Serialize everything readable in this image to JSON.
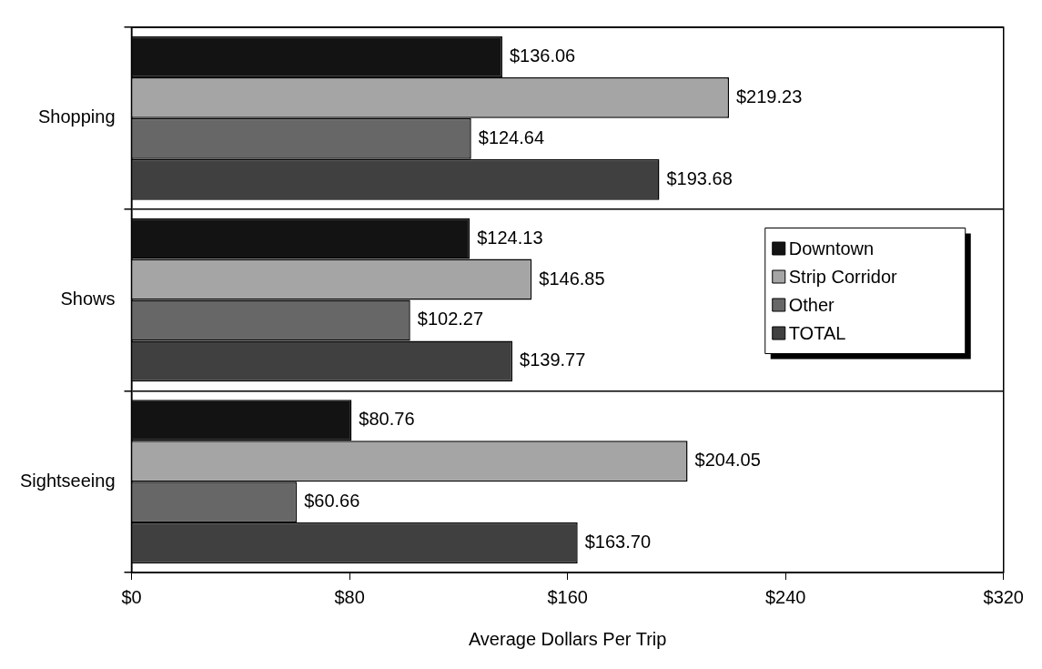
{
  "chart_data": {
    "type": "bar",
    "orientation": "horizontal",
    "xlabel": "Average Dollars Per Trip",
    "categories": [
      "Shopping",
      "Shows",
      "Sightseeing"
    ],
    "series": [
      {
        "name": "Downtown",
        "color": "#131313",
        "values": [
          136.06,
          124.13,
          80.76
        ],
        "value_labels": [
          "$136.06",
          "$124.13",
          "$80.76"
        ]
      },
      {
        "name": "Strip Corridor",
        "color": "#a5a5a5",
        "values": [
          219.23,
          146.85,
          204.05
        ],
        "value_labels": [
          "$219.23",
          "$146.85",
          "$204.05"
        ]
      },
      {
        "name": "Other",
        "color": "#676767",
        "values": [
          124.64,
          102.27,
          60.66
        ],
        "value_labels": [
          "$124.64",
          "$102.27",
          "$60.66"
        ]
      },
      {
        "name": "TOTAL",
        "color": "#404040",
        "values": [
          193.68,
          139.77,
          163.7
        ],
        "value_labels": [
          "$193.68",
          "$139.77",
          "$163.70"
        ]
      }
    ],
    "xlim": [
      0,
      320
    ],
    "xticks": [
      {
        "value": 0,
        "label": "$0"
      },
      {
        "value": 80,
        "label": "$80"
      },
      {
        "value": 160,
        "label": "$160"
      },
      {
        "value": 240,
        "label": "$240"
      },
      {
        "value": 320,
        "label": "$320"
      }
    ],
    "grid": "y",
    "legend": "right"
  }
}
